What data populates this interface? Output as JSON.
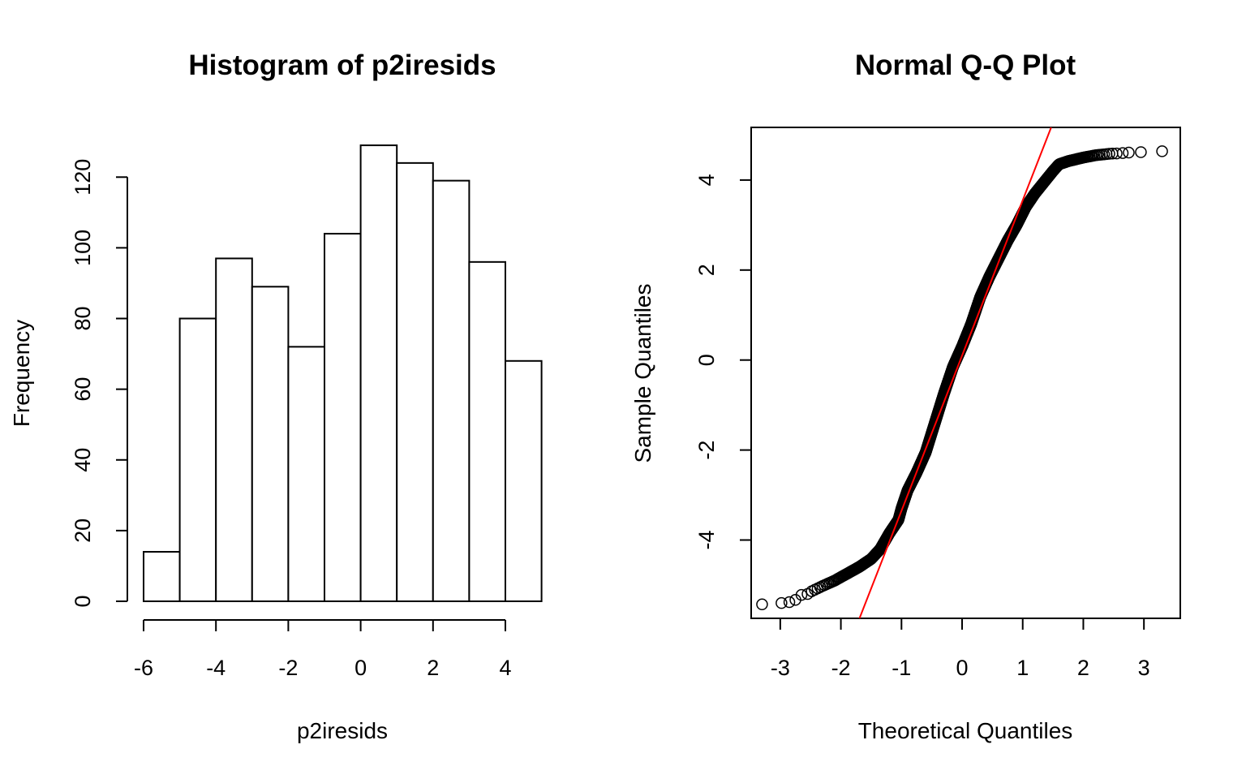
{
  "chart_data": [
    {
      "type": "bar",
      "title": "Histogram of p2iresids",
      "xlabel": "p2iresids",
      "ylabel": "Frequency",
      "bins": [
        {
          "from": -6,
          "to": -5,
          "count": 14
        },
        {
          "from": -5,
          "to": -4,
          "count": 80
        },
        {
          "from": -4,
          "to": -3,
          "count": 97
        },
        {
          "from": -3,
          "to": -2,
          "count": 89
        },
        {
          "from": -2,
          "to": -1,
          "count": 72
        },
        {
          "from": -1,
          "to": 0,
          "count": 104
        },
        {
          "from": 0,
          "to": 1,
          "count": 129
        },
        {
          "from": 1,
          "to": 2,
          "count": 124
        },
        {
          "from": 2,
          "to": 3,
          "count": 119
        },
        {
          "from": 3,
          "to": 4,
          "count": 96
        },
        {
          "from": 4,
          "to": 5,
          "count": 68
        }
      ],
      "xticks": [
        -6,
        -4,
        -2,
        0,
        2,
        4
      ],
      "yticks": [
        0,
        20,
        40,
        60,
        80,
        100,
        120
      ],
      "xlim": [
        -6,
        5
      ],
      "ylim": [
        0,
        129
      ],
      "bar_fill": "#ffffff",
      "bar_stroke": "#000000"
    },
    {
      "type": "scatter",
      "title": "Normal Q-Q Plot",
      "xlabel": "Theoretical Quantiles",
      "ylabel": "Sample Quantiles",
      "xticks": [
        -3,
        -2,
        -1,
        0,
        1,
        2,
        3
      ],
      "yticks": [
        -4,
        -2,
        0,
        2,
        4
      ],
      "xlim": [
        -3.48,
        3.6
      ],
      "ylim": [
        -5.74,
        5.17
      ],
      "n_points": 992,
      "curve_knots": {
        "x": [
          -3.3,
          -3.0,
          -2.85,
          -2.7,
          -2.5,
          -2.3,
          -2.1,
          -1.9,
          -1.7,
          -1.5,
          -1.35,
          -1.2,
          -1.05,
          -1.0,
          -0.9,
          -0.75,
          -0.6,
          -0.45,
          -0.3,
          -0.15,
          0.0,
          0.15,
          0.3,
          0.45,
          0.6,
          0.75,
          0.9,
          1.05,
          1.2,
          1.35,
          1.5,
          1.6,
          1.75,
          2.0,
          2.2,
          2.4,
          2.6,
          2.8,
          2.95,
          3.3
        ],
        "y": [
          -5.43,
          -5.4,
          -5.38,
          -5.3,
          -5.15,
          -5.02,
          -4.9,
          -4.75,
          -4.6,
          -4.42,
          -4.2,
          -3.85,
          -3.55,
          -3.3,
          -2.9,
          -2.5,
          -2.05,
          -1.4,
          -0.75,
          -0.15,
          0.3,
          0.8,
          1.4,
          1.85,
          2.25,
          2.65,
          3.0,
          3.4,
          3.7,
          3.95,
          4.2,
          4.35,
          4.42,
          4.5,
          4.55,
          4.58,
          4.6,
          4.62,
          4.63,
          4.64
        ]
      },
      "tail_points": [
        {
          "x": -3.3,
          "y": -5.43
        },
        {
          "x": -2.98,
          "y": -5.4
        },
        {
          "x": -2.85,
          "y": -5.38
        },
        {
          "x": -2.75,
          "y": -5.33
        },
        {
          "x": -2.65,
          "y": -5.22
        },
        {
          "x": -2.55,
          "y": -5.2
        },
        {
          "x": 2.55,
          "y": 4.59
        },
        {
          "x": 2.65,
          "y": 4.6
        },
        {
          "x": 2.75,
          "y": 4.61
        },
        {
          "x": 2.95,
          "y": 4.62
        },
        {
          "x": 3.3,
          "y": 4.64
        }
      ],
      "reference_line": {
        "intercept": 0.1,
        "slope": 3.45,
        "color": "#ff0000"
      },
      "point_stroke": "#000000"
    }
  ]
}
